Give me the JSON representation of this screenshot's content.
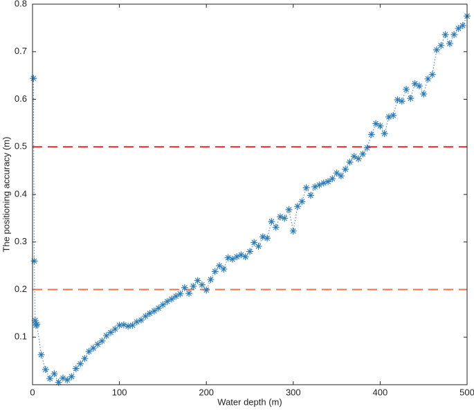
{
  "chart_data": {
    "type": "scatter-line",
    "xlabel": "Water depth (m)",
    "ylabel": "The positioning accuracy (m)",
    "xlim": [
      0,
      500
    ],
    "ylim": [
      0,
      0.8
    ],
    "xticks": [
      0,
      100,
      200,
      300,
      400,
      500
    ],
    "yticks": [
      0.1,
      0.2,
      0.3,
      0.4,
      0.5,
      0.6,
      0.7,
      0.8
    ],
    "hlines": [
      {
        "value": 0.5,
        "color": "#e8262a"
      },
      {
        "value": 0.2,
        "color": "#ef7043"
      }
    ],
    "series": [
      {
        "color": "#2b7bba",
        "x": [
          1,
          2,
          3,
          4,
          5,
          10,
          15,
          20,
          25,
          30,
          35,
          40,
          45,
          50,
          55,
          60,
          65,
          70,
          75,
          80,
          85,
          90,
          95,
          100,
          105,
          110,
          115,
          120,
          125,
          130,
          135,
          140,
          145,
          150,
          155,
          160,
          165,
          170,
          175,
          180,
          185,
          190,
          195,
          200,
          205,
          210,
          215,
          220,
          225,
          230,
          235,
          240,
          245,
          250,
          255,
          260,
          265,
          270,
          275,
          280,
          285,
          290,
          295,
          300,
          305,
          310,
          315,
          320,
          325,
          330,
          335,
          340,
          345,
          350,
          355,
          360,
          365,
          370,
          375,
          380,
          385,
          390,
          395,
          400,
          405,
          410,
          415,
          420,
          425,
          430,
          435,
          440,
          445,
          450,
          455,
          460,
          465,
          470,
          475,
          480,
          485,
          490,
          495,
          500
        ],
        "values": [
          0.644,
          0.26,
          0.135,
          0.125,
          0.127,
          0.063,
          0.032,
          0.013,
          0.023,
          0.005,
          0.014,
          0.01,
          0.017,
          0.034,
          0.044,
          0.055,
          0.07,
          0.077,
          0.085,
          0.092,
          0.103,
          0.11,
          0.117,
          0.125,
          0.126,
          0.123,
          0.125,
          0.132,
          0.136,
          0.144,
          0.15,
          0.155,
          0.161,
          0.168,
          0.175,
          0.18,
          0.186,
          0.191,
          0.204,
          0.192,
          0.207,
          0.219,
          0.21,
          0.199,
          0.221,
          0.238,
          0.25,
          0.243,
          0.267,
          0.264,
          0.269,
          0.273,
          0.269,
          0.28,
          0.299,
          0.291,
          0.311,
          0.308,
          0.343,
          0.331,
          0.353,
          0.35,
          0.368,
          0.323,
          0.375,
          0.385,
          0.414,
          0.398,
          0.416,
          0.42,
          0.424,
          0.427,
          0.433,
          0.445,
          0.439,
          0.453,
          0.468,
          0.48,
          0.475,
          0.485,
          0.498,
          0.526,
          0.549,
          0.544,
          0.528,
          0.563,
          0.566,
          0.599,
          0.596,
          0.621,
          0.602,
          0.633,
          0.628,
          0.611,
          0.643,
          0.652,
          0.704,
          0.713,
          0.736,
          0.717,
          0.736,
          0.749,
          0.755,
          0.775
        ]
      }
    ]
  }
}
